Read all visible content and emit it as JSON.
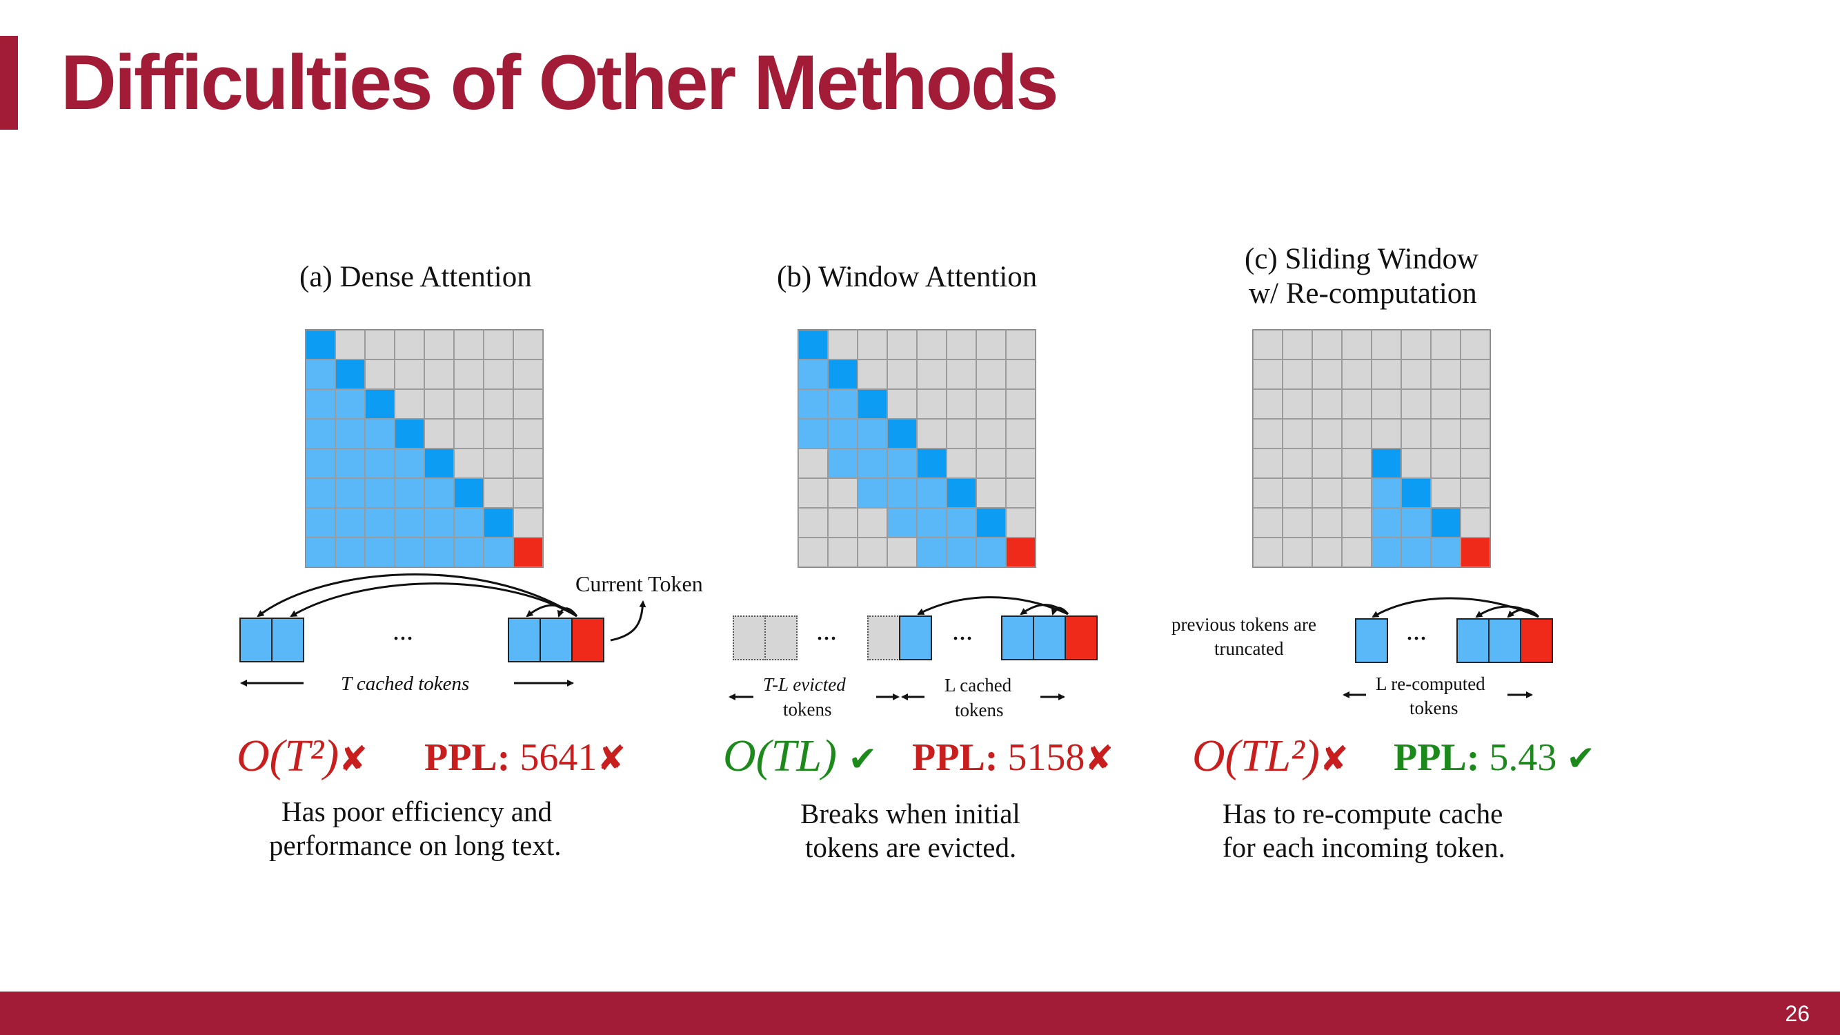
{
  "slide": {
    "title": "Difficulties of Other Methods",
    "page_number": "26"
  },
  "colors": {
    "accent": "#a31c37",
    "cell_empty": "#d6d6d6",
    "cell_attended": "#5ab8f8",
    "cell_diagonal": "#0d9cf3",
    "cell_current": "#ef2a1a",
    "bad": "#c81e1e",
    "good": "#1b8a1b"
  },
  "panels": [
    {
      "title": "(a) Dense Attention",
      "matrix": [
        [
          2,
          0,
          0,
          0,
          0,
          0,
          0,
          0
        ],
        [
          1,
          2,
          0,
          0,
          0,
          0,
          0,
          0
        ],
        [
          1,
          1,
          2,
          0,
          0,
          0,
          0,
          0
        ],
        [
          1,
          1,
          1,
          2,
          0,
          0,
          0,
          0
        ],
        [
          1,
          1,
          1,
          1,
          2,
          0,
          0,
          0
        ],
        [
          1,
          1,
          1,
          1,
          1,
          2,
          0,
          0
        ],
        [
          1,
          1,
          1,
          1,
          1,
          1,
          2,
          0
        ],
        [
          1,
          1,
          1,
          1,
          1,
          1,
          1,
          3
        ]
      ],
      "current_token_label": "Current Token",
      "ellipsis": "...",
      "range_label": "T cached tokens",
      "complexity": "O(T²)",
      "complexity_ok": false,
      "ppl_label": "PPL:",
      "ppl_value": "5641",
      "ppl_ok": false,
      "description": [
        "Has poor efficiency and",
        "performance on long text."
      ]
    },
    {
      "title": "(b) Window Attention",
      "matrix": [
        [
          2,
          0,
          0,
          0,
          0,
          0,
          0,
          0
        ],
        [
          1,
          2,
          0,
          0,
          0,
          0,
          0,
          0
        ],
        [
          1,
          1,
          2,
          0,
          0,
          0,
          0,
          0
        ],
        [
          1,
          1,
          1,
          2,
          0,
          0,
          0,
          0
        ],
        [
          0,
          1,
          1,
          1,
          2,
          0,
          0,
          0
        ],
        [
          0,
          0,
          1,
          1,
          1,
          2,
          0,
          0
        ],
        [
          0,
          0,
          0,
          1,
          1,
          1,
          2,
          0
        ],
        [
          0,
          0,
          0,
          0,
          1,
          1,
          1,
          3
        ]
      ],
      "ellipsis": "...",
      "evicted_label": [
        "T-L evicted",
        "tokens"
      ],
      "cached_label": [
        "L cached",
        "tokens"
      ],
      "complexity": "O(TL)",
      "complexity_ok": true,
      "ppl_label": "PPL:",
      "ppl_value": "5158",
      "ppl_ok": false,
      "description": [
        "Breaks when initial",
        "tokens are evicted."
      ]
    },
    {
      "title": [
        "(c) Sliding Window",
        "w/ Re-computation"
      ],
      "matrix": [
        [
          0,
          0,
          0,
          0,
          0,
          0,
          0,
          0
        ],
        [
          0,
          0,
          0,
          0,
          0,
          0,
          0,
          0
        ],
        [
          0,
          0,
          0,
          0,
          0,
          0,
          0,
          0
        ],
        [
          0,
          0,
          0,
          0,
          0,
          0,
          0,
          0
        ],
        [
          0,
          0,
          0,
          0,
          2,
          0,
          0,
          0
        ],
        [
          0,
          0,
          0,
          0,
          1,
          2,
          0,
          0
        ],
        [
          0,
          0,
          0,
          0,
          1,
          1,
          2,
          0
        ],
        [
          0,
          0,
          0,
          0,
          1,
          1,
          1,
          3
        ]
      ],
      "truncated_label": [
        "previous tokens are",
        "truncated"
      ],
      "ellipsis": "...",
      "recomputed_label": [
        "L re-computed",
        "tokens"
      ],
      "complexity": "O(TL²)",
      "complexity_ok": false,
      "ppl_label": "PPL:",
      "ppl_value": "5.43",
      "ppl_ok": true,
      "description": [
        "Has to re-compute cache",
        "for each incoming token."
      ]
    }
  ],
  "marks": {
    "cross": "✘",
    "check": "✔"
  }
}
